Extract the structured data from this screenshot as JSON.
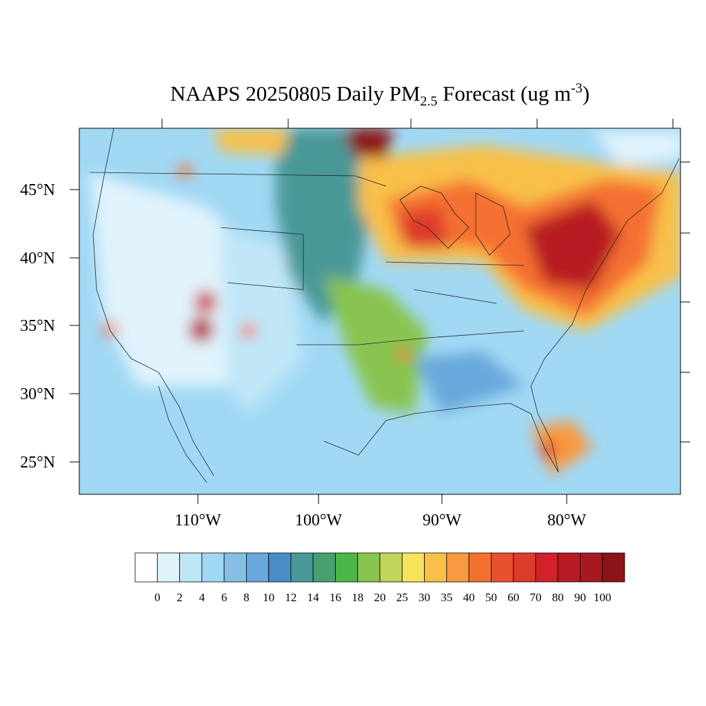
{
  "title": {
    "main": "NAAPS 20250805 Daily PM",
    "subscript": "2.5",
    "middle": " Forecast (ug m",
    "superscript": "-3",
    "end": ")"
  },
  "map": {
    "lat_labels": [
      "45°N",
      "40°N",
      "35°N",
      "30°N",
      "25°N"
    ],
    "lon_labels": [
      "110°W",
      "100°W",
      "90°W",
      "80°W"
    ]
  },
  "colorbar": {
    "labels": [
      "0",
      "2",
      "4",
      "6",
      "8",
      "10",
      "12",
      "14",
      "16",
      "18",
      "20",
      "25",
      "30",
      "35",
      "40",
      "50",
      "60",
      "70",
      "80",
      "90",
      "100"
    ],
    "colors": [
      "#ffffff",
      "#e0f3fc",
      "#c0e6f8",
      "#a0d8f4",
      "#85bfe6",
      "#68a8dc",
      "#4a8cc8",
      "#4a9898",
      "#48a070",
      "#4cb648",
      "#88c450",
      "#c2d45a",
      "#f8e45a",
      "#f8c048",
      "#f89a40",
      "#f47030",
      "#e85030",
      "#dc3a2c",
      "#d02228",
      "#b81a24",
      "#a81820",
      "#8c1418"
    ]
  }
}
